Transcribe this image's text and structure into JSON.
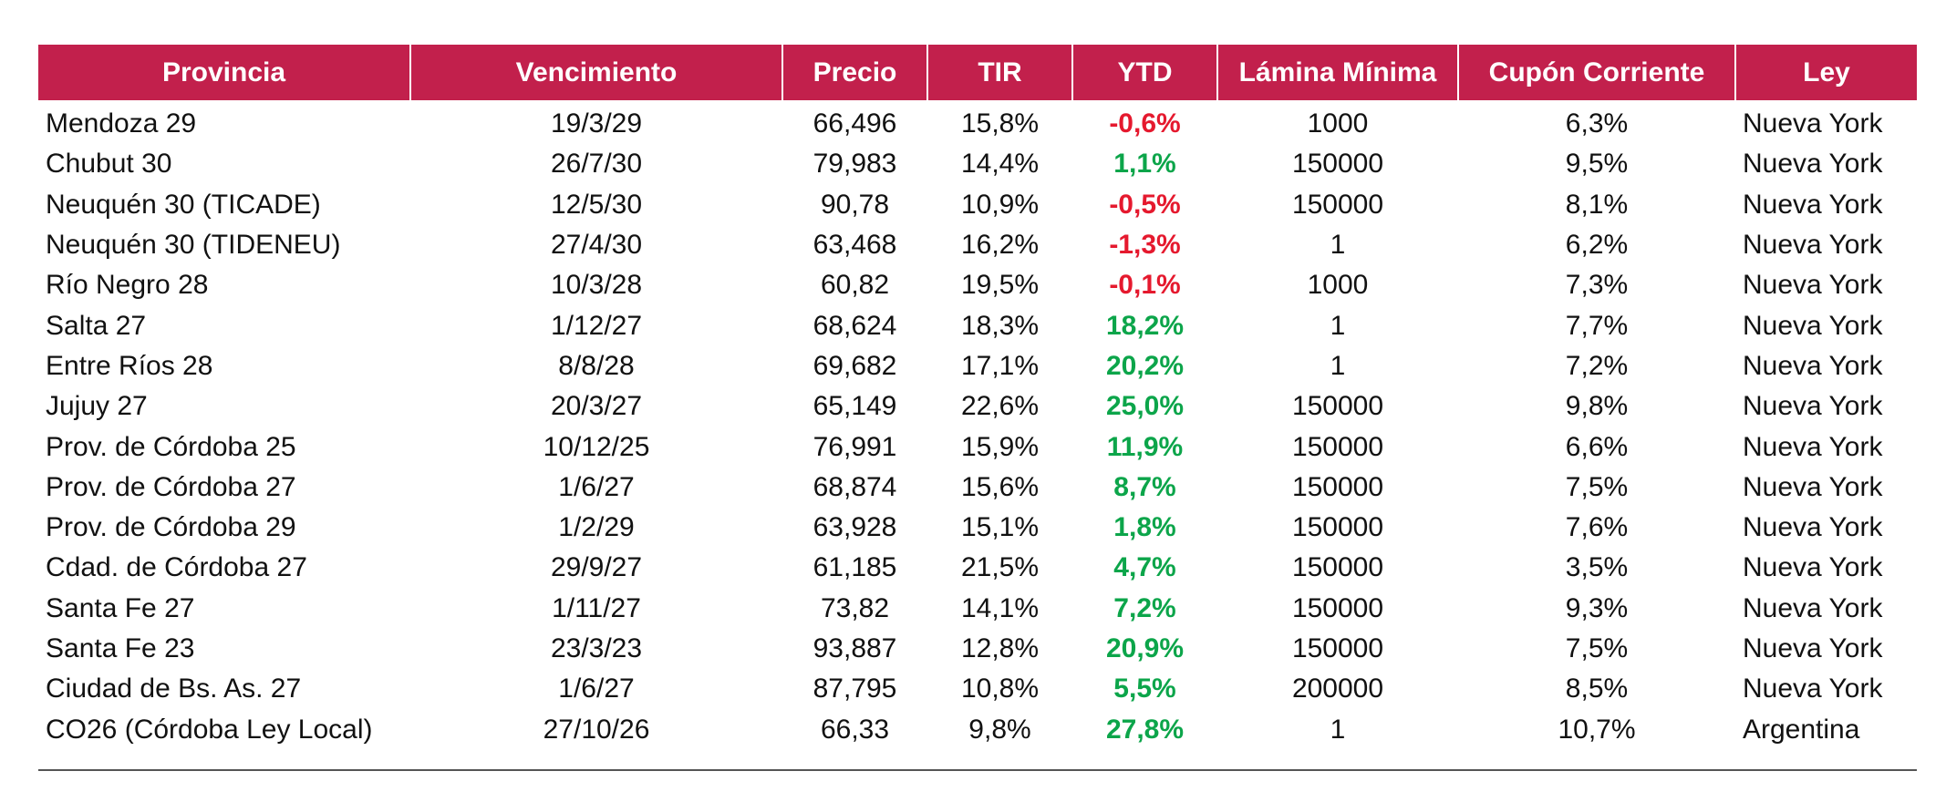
{
  "colors": {
    "header_bg": "#c2204c",
    "header_text": "#ffffff",
    "negative": "#e5192e",
    "positive": "#0ca54a"
  },
  "table": {
    "headers": [
      "Provincia",
      "Vencimiento",
      "Precio",
      "TIR",
      "YTD",
      "Lámina Mínima",
      "Cupón Corriente",
      "Ley"
    ],
    "rows": [
      {
        "provincia": "Mendoza 29",
        "vencimiento": "19/3/29",
        "precio": "66,496",
        "tir": "15,8%",
        "ytd": "-0,6%",
        "ytd_sign": "neg",
        "lamina": "1000",
        "cupon": "6,3%",
        "ley": "Nueva York"
      },
      {
        "provincia": "Chubut 30",
        "vencimiento": "26/7/30",
        "precio": "79,983",
        "tir": "14,4%",
        "ytd": "1,1%",
        "ytd_sign": "pos",
        "lamina": "150000",
        "cupon": "9,5%",
        "ley": "Nueva York"
      },
      {
        "provincia": "Neuquén 30 (TICADE)",
        "vencimiento": "12/5/30",
        "precio": "90,78",
        "tir": "10,9%",
        "ytd": "-0,5%",
        "ytd_sign": "neg",
        "lamina": "150000",
        "cupon": "8,1%",
        "ley": "Nueva York"
      },
      {
        "provincia": "Neuquén 30 (TIDENEU)",
        "vencimiento": "27/4/30",
        "precio": "63,468",
        "tir": "16,2%",
        "ytd": "-1,3%",
        "ytd_sign": "neg",
        "lamina": "1",
        "cupon": "6,2%",
        "ley": "Nueva York"
      },
      {
        "provincia": "Río Negro 28",
        "vencimiento": "10/3/28",
        "precio": "60,82",
        "tir": "19,5%",
        "ytd": "-0,1%",
        "ytd_sign": "neg",
        "lamina": "1000",
        "cupon": "7,3%",
        "ley": "Nueva York"
      },
      {
        "provincia": "Salta 27",
        "vencimiento": "1/12/27",
        "precio": "68,624",
        "tir": "18,3%",
        "ytd": "18,2%",
        "ytd_sign": "pos",
        "lamina": "1",
        "cupon": "7,7%",
        "ley": "Nueva York"
      },
      {
        "provincia": "Entre Ríos 28",
        "vencimiento": "8/8/28",
        "precio": "69,682",
        "tir": "17,1%",
        "ytd": "20,2%",
        "ytd_sign": "pos",
        "lamina": "1",
        "cupon": "7,2%",
        "ley": "Nueva York"
      },
      {
        "provincia": "Jujuy 27",
        "vencimiento": "20/3/27",
        "precio": "65,149",
        "tir": "22,6%",
        "ytd": "25,0%",
        "ytd_sign": "pos",
        "lamina": "150000",
        "cupon": "9,8%",
        "ley": "Nueva York"
      },
      {
        "provincia": "Prov. de Córdoba 25",
        "vencimiento": "10/12/25",
        "precio": "76,991",
        "tir": "15,9%",
        "ytd": "11,9%",
        "ytd_sign": "pos",
        "lamina": "150000",
        "cupon": "6,6%",
        "ley": "Nueva York"
      },
      {
        "provincia": "Prov. de Córdoba 27",
        "vencimiento": "1/6/27",
        "precio": "68,874",
        "tir": "15,6%",
        "ytd": "8,7%",
        "ytd_sign": "pos",
        "lamina": "150000",
        "cupon": "7,5%",
        "ley": "Nueva York"
      },
      {
        "provincia": "Prov. de Córdoba 29",
        "vencimiento": "1/2/29",
        "precio": "63,928",
        "tir": "15,1%",
        "ytd": "1,8%",
        "ytd_sign": "pos",
        "lamina": "150000",
        "cupon": "7,6%",
        "ley": "Nueva York"
      },
      {
        "provincia": "Cdad. de Córdoba 27",
        "vencimiento": "29/9/27",
        "precio": "61,185",
        "tir": "21,5%",
        "ytd": "4,7%",
        "ytd_sign": "pos",
        "lamina": "150000",
        "cupon": "3,5%",
        "ley": "Nueva York"
      },
      {
        "provincia": "Santa Fe 27",
        "vencimiento": "1/11/27",
        "precio": "73,82",
        "tir": "14,1%",
        "ytd": "7,2%",
        "ytd_sign": "pos",
        "lamina": "150000",
        "cupon": "9,3%",
        "ley": "Nueva York"
      },
      {
        "provincia": "Santa Fe 23",
        "vencimiento": "23/3/23",
        "precio": "93,887",
        "tir": "12,8%",
        "ytd": "20,9%",
        "ytd_sign": "pos",
        "lamina": "150000",
        "cupon": "7,5%",
        "ley": "Nueva York"
      },
      {
        "provincia": "Ciudad de Bs. As. 27",
        "vencimiento": "1/6/27",
        "precio": "87,795",
        "tir": "10,8%",
        "ytd": "5,5%",
        "ytd_sign": "pos",
        "lamina": "200000",
        "cupon": "8,5%",
        "ley": "Nueva York"
      },
      {
        "provincia": "CO26 (Córdoba Ley Local)",
        "vencimiento": "27/10/26",
        "precio": "66,33",
        "tir": "9,8%",
        "ytd": "27,8%",
        "ytd_sign": "pos",
        "lamina": "1",
        "cupon": "10,7%",
        "ley": "Argentina"
      }
    ]
  }
}
